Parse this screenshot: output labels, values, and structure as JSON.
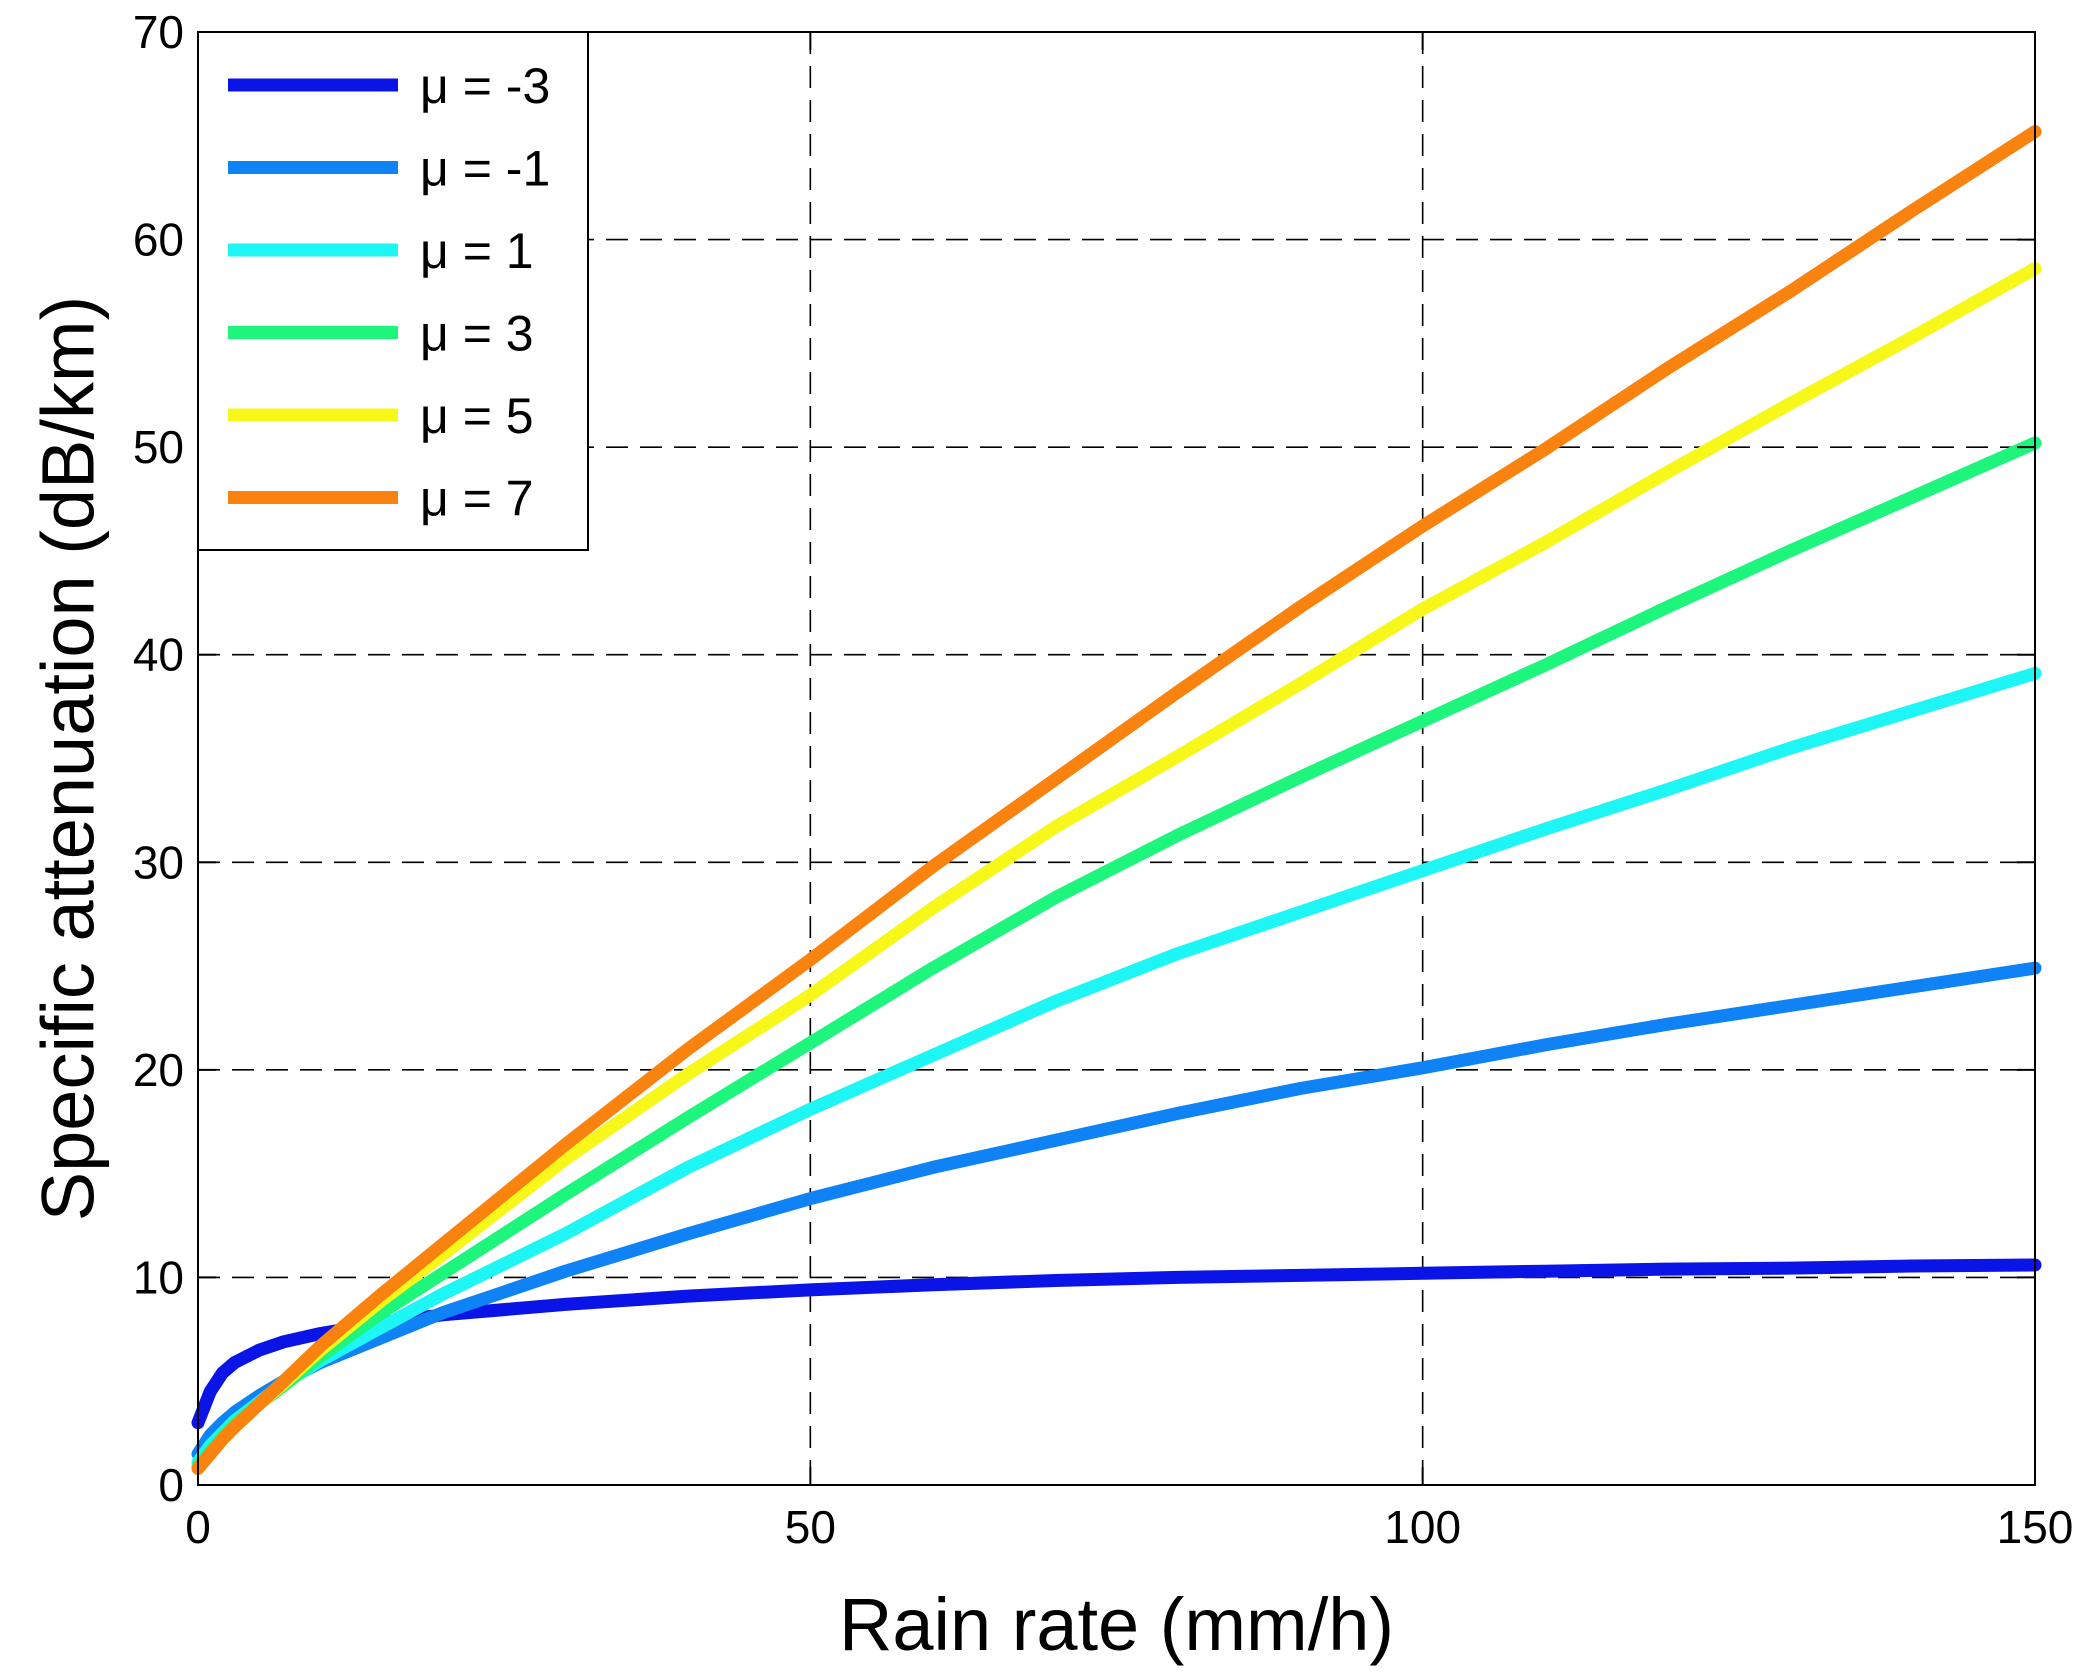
{
  "chart_data": {
    "type": "line",
    "title": "",
    "xlabel": "Rain rate (mm/h)",
    "ylabel": "Specific attenuation (dB/km)",
    "xlim": [
      0,
      150
    ],
    "ylim": [
      0,
      70
    ],
    "xticks": [
      0,
      50,
      100,
      150
    ],
    "yticks": [
      0,
      10,
      20,
      30,
      40,
      50,
      60,
      70
    ],
    "grid": true,
    "legend_position": "top-left",
    "series": [
      {
        "name": "μ = -3",
        "color": "#0a14e6",
        "x": [
          0,
          1,
          2,
          3,
          5,
          7,
          10,
          15,
          20,
          30,
          40,
          50,
          60,
          70,
          80,
          90,
          100,
          110,
          120,
          130,
          140,
          150
        ],
        "y": [
          3.0,
          4.5,
          5.4,
          5.9,
          6.5,
          6.9,
          7.3,
          7.8,
          8.2,
          8.7,
          9.1,
          9.4,
          9.65,
          9.85,
          10.0,
          10.1,
          10.2,
          10.3,
          10.4,
          10.45,
          10.55,
          10.6
        ]
      },
      {
        "name": "μ = -1",
        "color": "#0f82f5",
        "x": [
          0,
          1,
          2,
          3,
          5,
          7,
          10,
          15,
          20,
          30,
          40,
          50,
          60,
          70,
          80,
          90,
          100,
          110,
          120,
          130,
          140,
          150
        ],
        "y": [
          1.5,
          2.4,
          3.0,
          3.5,
          4.3,
          5.0,
          5.9,
          7.1,
          8.3,
          10.3,
          12.1,
          13.8,
          15.3,
          16.6,
          17.9,
          19.1,
          20.1,
          21.2,
          22.2,
          23.1,
          24.0,
          24.9
        ]
      },
      {
        "name": "μ = 1",
        "color": "#1ef5f5",
        "x": [
          0,
          1,
          2,
          3,
          5,
          7,
          10,
          15,
          20,
          30,
          40,
          50,
          60,
          70,
          80,
          90,
          100,
          110,
          120,
          130,
          140,
          150
        ],
        "y": [
          1.1,
          1.9,
          2.5,
          3.1,
          4.0,
          4.9,
          6.0,
          7.6,
          9.2,
          12.1,
          15.3,
          18.1,
          20.7,
          23.3,
          25.6,
          27.6,
          29.6,
          31.6,
          33.5,
          35.5,
          37.3,
          39.1
        ]
      },
      {
        "name": "μ = 3",
        "color": "#1ef57d",
        "x": [
          0,
          1,
          2,
          3,
          5,
          7,
          10,
          15,
          20,
          30,
          40,
          50,
          60,
          70,
          80,
          90,
          100,
          110,
          120,
          130,
          140,
          150
        ],
        "y": [
          0.9,
          1.6,
          2.3,
          2.9,
          3.9,
          4.8,
          6.2,
          8.3,
          10.2,
          14.0,
          17.7,
          21.3,
          24.9,
          28.3,
          31.3,
          34.1,
          36.8,
          39.5,
          42.3,
          45.0,
          47.6,
          50.2
        ]
      },
      {
        "name": "μ = 5",
        "color": "#f7f71a",
        "x": [
          0,
          1,
          2,
          3,
          5,
          7,
          10,
          15,
          20,
          30,
          40,
          50,
          60,
          70,
          80,
          90,
          100,
          110,
          120,
          130,
          140,
          150
        ],
        "y": [
          0.8,
          1.5,
          2.2,
          2.8,
          3.9,
          4.9,
          6.5,
          8.9,
          11.1,
          15.7,
          19.8,
          23.6,
          27.8,
          31.7,
          35.1,
          38.6,
          42.2,
          45.4,
          48.8,
          52.1,
          55.3,
          58.6
        ]
      },
      {
        "name": "μ = 7",
        "color": "#fa820f",
        "x": [
          0,
          1,
          2,
          3,
          5,
          7,
          10,
          15,
          20,
          30,
          40,
          50,
          60,
          70,
          80,
          90,
          100,
          110,
          120,
          130,
          140,
          150
        ],
        "y": [
          0.8,
          1.5,
          2.2,
          2.8,
          3.9,
          5.0,
          6.7,
          9.2,
          11.6,
          16.4,
          21.0,
          25.3,
          29.8,
          34.0,
          38.2,
          42.3,
          46.2,
          49.9,
          53.8,
          57.5,
          61.4,
          65.2
        ]
      }
    ]
  }
}
